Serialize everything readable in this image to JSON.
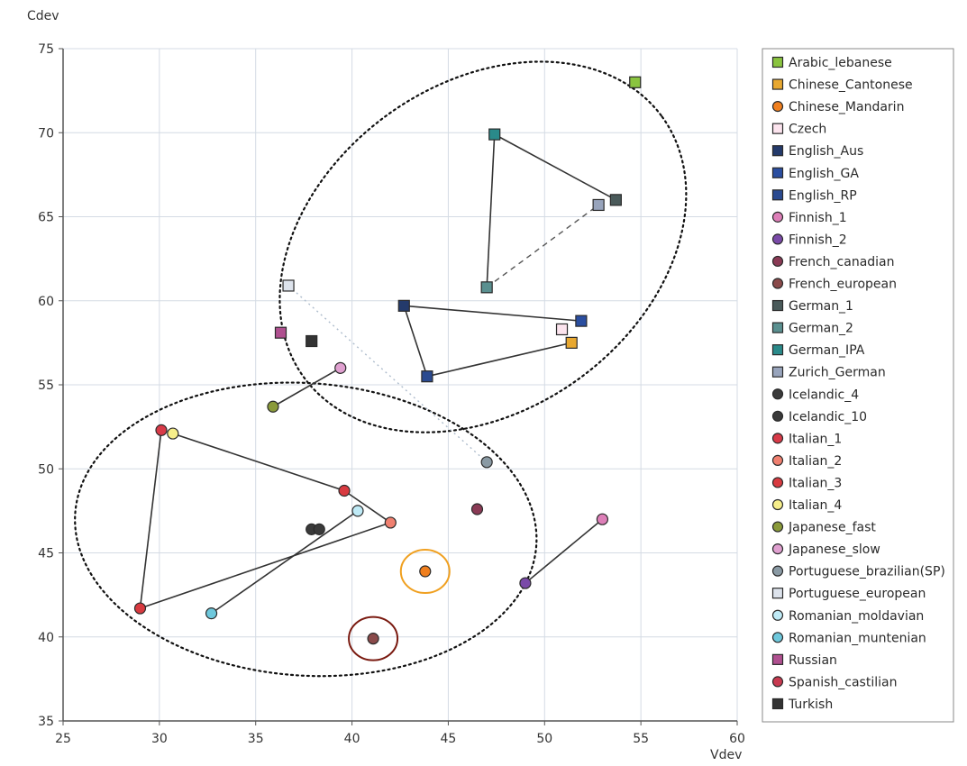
{
  "chart_data": {
    "type": "scatter",
    "xlabel": "Vdev",
    "ylabel": "Cdev",
    "xlim": [
      25,
      60
    ],
    "ylim": [
      35,
      75
    ],
    "x_ticks": [
      25,
      30,
      35,
      40,
      45,
      50,
      55,
      60
    ],
    "y_ticks": [
      35,
      40,
      45,
      50,
      55,
      60,
      65,
      70,
      75
    ],
    "grid": true,
    "legend_position": "right",
    "series": [
      {
        "name": "Arabic_lebanese",
        "color": "#8ac43f",
        "marker": "square",
        "points": [
          [
            54.7,
            73.0
          ]
        ]
      },
      {
        "name": "Chinese_Cantonese",
        "color": "#e8a830",
        "marker": "square",
        "points": [
          [
            51.4,
            57.5
          ]
        ]
      },
      {
        "name": "Chinese_Mandarin",
        "color": "#f07f1e",
        "marker": "circle",
        "points": [
          [
            43.8,
            43.9
          ]
        ]
      },
      {
        "name": "Czech",
        "color": "#fce4ee",
        "marker": "square",
        "points": [
          [
            50.9,
            58.3
          ]
        ]
      },
      {
        "name": "English_Aus",
        "color": "#243a6b",
        "marker": "square",
        "points": [
          [
            42.7,
            59.7
          ]
        ]
      },
      {
        "name": "English_GA",
        "color": "#2a4ea0",
        "marker": "square",
        "points": [
          [
            51.9,
            58.8
          ]
        ]
      },
      {
        "name": "English_RP",
        "color": "#2a4a90",
        "marker": "square",
        "points": [
          [
            43.9,
            55.5
          ]
        ]
      },
      {
        "name": "Finnish_1",
        "color": "#dd7fb8",
        "marker": "circle",
        "points": [
          [
            53.0,
            47.0
          ]
        ]
      },
      {
        "name": "Finnish_2",
        "color": "#7a4aa8",
        "marker": "circle",
        "points": [
          [
            49.0,
            43.2
          ]
        ]
      },
      {
        "name": "French_canadian",
        "color": "#8a3a55",
        "marker": "circle",
        "points": [
          [
            46.5,
            47.6
          ]
        ]
      },
      {
        "name": "French_european",
        "color": "#8a4a4a",
        "marker": "circle",
        "points": [
          [
            41.1,
            39.9
          ]
        ]
      },
      {
        "name": "German_1",
        "color": "#4a5a5a",
        "marker": "square",
        "points": [
          [
            53.7,
            66.0
          ]
        ]
      },
      {
        "name": "German_2",
        "color": "#5a9090",
        "marker": "square",
        "points": [
          [
            47.0,
            60.8
          ]
        ]
      },
      {
        "name": "German_IPA",
        "color": "#2a8a8a",
        "marker": "square",
        "points": [
          [
            47.4,
            69.9
          ]
        ]
      },
      {
        "name": "Zurich_German",
        "color": "#98a4bc",
        "marker": "square",
        "points": [
          [
            52.8,
            65.7
          ]
        ]
      },
      {
        "name": "Icelandic_4",
        "color": "#3a3a3a",
        "marker": "circle",
        "points": [
          [
            37.9,
            46.4
          ]
        ]
      },
      {
        "name": "Icelandic_10",
        "color": "#3a3a3a",
        "marker": "circle",
        "points": [
          [
            38.3,
            46.4
          ]
        ]
      },
      {
        "name": "Italian_1",
        "color": "#d83a48",
        "marker": "circle",
        "points": [
          [
            30.1,
            52.3
          ]
        ]
      },
      {
        "name": "Italian_2",
        "color": "#f08070",
        "marker": "circle",
        "points": [
          [
            42.0,
            46.8
          ]
        ]
      },
      {
        "name": "Italian_3",
        "color": "#d83a40",
        "marker": "circle",
        "points": [
          [
            39.6,
            48.7
          ],
          [
            29.0,
            41.7
          ]
        ]
      },
      {
        "name": "Italian_4",
        "color": "#f6ee8a",
        "marker": "circle",
        "points": [
          [
            30.7,
            52.1
          ]
        ]
      },
      {
        "name": "Japanese_fast",
        "color": "#8a9a3a",
        "marker": "circle",
        "points": [
          [
            35.9,
            53.7
          ]
        ]
      },
      {
        "name": "Japanese_slow",
        "color": "#e0a0d0",
        "marker": "circle",
        "points": [
          [
            39.4,
            56.0
          ]
        ]
      },
      {
        "name": "Portuguese_brazilian(SP)",
        "color": "#8a9aa4",
        "marker": "circle",
        "points": [
          [
            47.0,
            50.4
          ]
        ]
      },
      {
        "name": "Portuguese_european",
        "color": "#dde3ec",
        "marker": "square",
        "points": [
          [
            36.7,
            60.9
          ]
        ]
      },
      {
        "name": "Romanian_moldavian",
        "color": "#bfeaf6",
        "marker": "circle",
        "points": [
          [
            40.3,
            47.5
          ]
        ]
      },
      {
        "name": "Romanian_muntenian",
        "color": "#6ec8dc",
        "marker": "circle",
        "points": [
          [
            32.7,
            41.4
          ]
        ]
      },
      {
        "name": "Russian",
        "color": "#b05090",
        "marker": "square",
        "points": [
          [
            36.3,
            58.1
          ]
        ]
      },
      {
        "name": "Spanish_castilian",
        "color": "#c83a50",
        "marker": "circle",
        "points": []
      },
      {
        "name": "Turkish",
        "color": "#333333",
        "marker": "square",
        "points": [
          [
            37.9,
            57.6
          ]
        ]
      }
    ],
    "connections": [
      {
        "from": [
          47.4,
          69.9
        ],
        "to": [
          53.7,
          66.0
        ],
        "style": "solid"
      },
      {
        "from": [
          47.4,
          69.9
        ],
        "to": [
          47.0,
          60.8
        ],
        "style": "solid"
      },
      {
        "from": [
          47.0,
          60.8
        ],
        "to": [
          52.8,
          65.7
        ],
        "style": "dashed"
      },
      {
        "from": [
          42.7,
          59.7
        ],
        "to": [
          51.9,
          58.8
        ],
        "style": "solid"
      },
      {
        "from": [
          42.7,
          59.7
        ],
        "to": [
          43.9,
          55.5
        ],
        "style": "solid"
      },
      {
        "from": [
          43.9,
          55.5
        ],
        "to": [
          51.4,
          57.5
        ],
        "style": "solid"
      },
      {
        "from": [
          36.7,
          60.9
        ],
        "to": [
          47.0,
          50.4
        ],
        "style": "dotted"
      },
      {
        "from": [
          35.9,
          53.7
        ],
        "to": [
          39.4,
          56.0
        ],
        "style": "solid"
      },
      {
        "from": [
          30.7,
          52.1
        ],
        "to": [
          39.6,
          48.7
        ],
        "style": "solid"
      },
      {
        "from": [
          39.6,
          48.7
        ],
        "to": [
          42.0,
          46.8
        ],
        "style": "solid"
      },
      {
        "from": [
          42.0,
          46.8
        ],
        "to": [
          29.0,
          41.7
        ],
        "style": "solid"
      },
      {
        "from": [
          29.0,
          41.7
        ],
        "to": [
          30.1,
          52.3
        ],
        "style": "solid"
      },
      {
        "from": [
          40.3,
          47.5
        ],
        "to": [
          32.7,
          41.4
        ],
        "style": "solid"
      },
      {
        "from": [
          53.0,
          47.0
        ],
        "to": [
          49.0,
          43.2
        ],
        "style": "solid"
      }
    ],
    "cluster_ellipses": [
      {
        "center": [
          46.8,
          63.2
        ],
        "rx": 11.5,
        "ry": 9.7,
        "rotation_deg": -36
      },
      {
        "center": [
          37.6,
          46.4
        ],
        "rx": 12.0,
        "ry": 8.7,
        "rotation_deg": 4
      }
    ],
    "highlight_circles": [
      {
        "center": [
          43.8,
          43.9
        ],
        "color": "#f0a020"
      },
      {
        "center": [
          41.1,
          39.9
        ],
        "color": "#7a1a10"
      }
    ]
  }
}
